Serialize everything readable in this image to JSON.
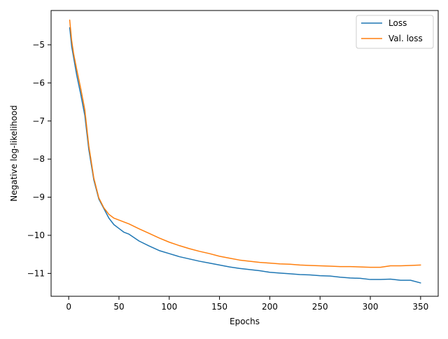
{
  "chart_data": {
    "type": "line",
    "title": "",
    "xlabel": "Epochs",
    "ylabel": "Negative log-likelihood",
    "xlim": [
      -17.5,
      367.5
    ],
    "ylim": [
      -11.6,
      -4.1
    ],
    "xticks": [
      0,
      50,
      100,
      150,
      200,
      250,
      300,
      350
    ],
    "yticks": [
      -5,
      -6,
      -7,
      -8,
      -9,
      -10,
      -11
    ],
    "xtick_labels": [
      "0",
      "50",
      "100",
      "150",
      "200",
      "250",
      "300",
      "350"
    ],
    "ytick_labels": [
      "−5",
      "−6",
      "−7",
      "−8",
      "−9",
      "−10",
      "−11"
    ],
    "grid": false,
    "legend_position": "top-right",
    "series": [
      {
        "name": "Loss",
        "color": "#1f77b4",
        "x": [
          1,
          3,
          5,
          8,
          12,
          16,
          20,
          25,
          30,
          35,
          40,
          45,
          50,
          55,
          60,
          70,
          80,
          90,
          100,
          110,
          120,
          130,
          140,
          150,
          160,
          170,
          180,
          190,
          200,
          210,
          220,
          230,
          240,
          250,
          260,
          270,
          280,
          290,
          300,
          310,
          320,
          330,
          340,
          350
        ],
        "y": [
          -4.55,
          -5.05,
          -5.35,
          -5.8,
          -6.3,
          -6.85,
          -7.75,
          -8.55,
          -9.05,
          -9.3,
          -9.55,
          -9.72,
          -9.82,
          -9.92,
          -9.97,
          -10.15,
          -10.28,
          -10.4,
          -10.48,
          -10.56,
          -10.62,
          -10.68,
          -10.73,
          -10.78,
          -10.83,
          -10.87,
          -10.9,
          -10.93,
          -10.97,
          -10.99,
          -11.01,
          -11.03,
          -11.04,
          -11.06,
          -11.07,
          -11.1,
          -11.12,
          -11.13,
          -11.16,
          -11.16,
          -11.15,
          -11.18,
          -11.18,
          -11.25
        ]
      },
      {
        "name": "Val. loss",
        "color": "#ff7f0e",
        "x": [
          1,
          3,
          5,
          8,
          12,
          16,
          20,
          25,
          30,
          35,
          40,
          45,
          50,
          55,
          60,
          70,
          80,
          90,
          100,
          110,
          120,
          130,
          140,
          150,
          160,
          170,
          180,
          190,
          200,
          210,
          220,
          230,
          240,
          250,
          260,
          270,
          280,
          290,
          300,
          310,
          320,
          330,
          340,
          350
        ],
        "y": [
          -4.35,
          -4.9,
          -5.25,
          -5.65,
          -6.15,
          -6.7,
          -7.65,
          -8.5,
          -9.02,
          -9.28,
          -9.45,
          -9.55,
          -9.6,
          -9.65,
          -9.7,
          -9.83,
          -9.95,
          -10.07,
          -10.18,
          -10.27,
          -10.35,
          -10.42,
          -10.48,
          -10.55,
          -10.6,
          -10.65,
          -10.68,
          -10.71,
          -10.73,
          -10.75,
          -10.76,
          -10.78,
          -10.79,
          -10.8,
          -10.81,
          -10.82,
          -10.82,
          -10.83,
          -10.84,
          -10.84,
          -10.8,
          -10.8,
          -10.79,
          -10.78
        ]
      }
    ]
  }
}
